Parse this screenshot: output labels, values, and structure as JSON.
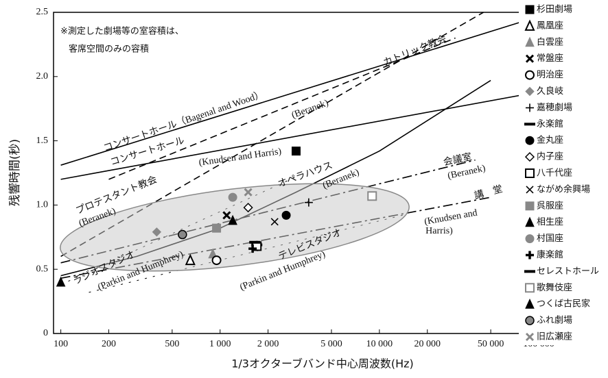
{
  "chart_data": {
    "type": "scatter",
    "xlabel": "1/3オクターブバンド中心周波数(Hz)",
    "ylabel": "残響時間(秒)",
    "xlog": true,
    "xlim": [
      90,
      100000
    ],
    "ylim": [
      0,
      2.5
    ],
    "xticks": [
      100,
      200,
      500,
      {
        "value": 1000,
        "label": "1 000"
      },
      {
        "value": 2000,
        "label": "2 000"
      },
      {
        "value": 5000,
        "label": "5 000"
      },
      {
        "value": 10000,
        "label": "10 000"
      },
      {
        "value": 20000,
        "label": "20 000"
      },
      {
        "value": 50000,
        "label": "50 000"
      },
      {
        "value": 100000,
        "label": "100 000"
      }
    ],
    "yticks": [
      0,
      0.5,
      {
        "value": 1,
        "label": "1.0"
      },
      1.5,
      {
        "value": 2,
        "label": "2.0"
      },
      2.5
    ],
    "note": [
      "※測定した劇場等の室容積は、",
      "客席空間のみの容積"
    ],
    "lines": [
      {
        "style": "solid",
        "x": [
          100,
          80000
        ],
        "values": [
          1.31,
          2.43
        ]
      },
      {
        "style": "solid",
        "x": [
          100,
          100000
        ],
        "values": [
          1.2,
          1.88
        ]
      },
      {
        "style": "dashed",
        "x": [
          200,
          30000
        ],
        "values": [
          1.2,
          2.3
        ]
      },
      {
        "style": "dashed",
        "x": [
          100,
          45000
        ],
        "values": [
          0.6,
          2.5
        ]
      },
      {
        "style": "solid",
        "x": [
          100,
          300,
          1000,
          3000,
          10000,
          50000
        ],
        "values": [
          0.45,
          0.6,
          0.82,
          1.1,
          1.42,
          1.97
        ]
      },
      {
        "style": "dashdot",
        "x": [
          100,
          40000
        ],
        "values": [
          0.55,
          1.35
        ]
      },
      {
        "style": "dashdot",
        "x": [
          100,
          50000
        ],
        "values": [
          0.43,
          1.06
        ]
      },
      {
        "style": "cross",
        "x": [
          100,
          3000
        ],
        "values": [
          0.38,
          1.22
        ]
      },
      {
        "style": "cross",
        "x": [
          150,
          15000
        ],
        "values": [
          0.32,
          0.93
        ]
      }
    ],
    "annotations": [
      "コンサートホール（Bagenal and Wood）",
      "コンサートホール",
      "(Beranek)",
      "カトリック教会",
      "プロテスタント教会",
      "(Beranek)",
      "(Knudsen and Harris)",
      "オペラハウス",
      "(Beranek)",
      "会議室",
      "(Beranek)",
      "講　堂",
      "(Knudsen and",
      "Harris)",
      "ラジオスタジオ",
      "(Parkin and Humphrey)",
      "テレビスタジオ",
      "(Parkin and Humphrey)"
    ],
    "series": [
      {
        "name": "杉田劇場",
        "color": "#000000",
        "marker": "square",
        "x": [
          3000
        ],
        "values": [
          1.42
        ]
      },
      {
        "name": "鳳凰座",
        "color": "#000000",
        "marker": "triangle-open",
        "x": [
          650
        ],
        "values": [
          0.57
        ]
      },
      {
        "name": "白雲座",
        "color": "#888888",
        "marker": "triangle",
        "x": [
          900
        ],
        "values": [
          0.62
        ]
      },
      {
        "name": "常盤座",
        "color": "#000000",
        "marker": "cross-bold",
        "x": [
          1100
        ],
        "values": [
          0.92
        ]
      },
      {
        "name": "明治座",
        "color": "#000000",
        "marker": "circle-open",
        "x": [
          950
        ],
        "values": [
          0.57
        ]
      },
      {
        "name": "久良岐",
        "color": "#888888",
        "marker": "diamond",
        "x": [
          400
        ],
        "values": [
          0.79
        ]
      },
      {
        "name": "嘉穂劇場",
        "color": "#000000",
        "marker": "plus",
        "x": [
          3600
        ],
        "values": [
          1.02
        ]
      },
      {
        "name": "永楽館",
        "color": "#000000",
        "marker": "bar",
        "x": [
          1700
        ],
        "values": [
          0.69
        ]
      },
      {
        "name": "金丸座",
        "color": "#000000",
        "marker": "circle",
        "x": [
          2600
        ],
        "values": [
          0.92
        ]
      },
      {
        "name": "内子座",
        "color": "#000000",
        "marker": "diamond-open",
        "x": [
          1500
        ],
        "values": [
          0.98
        ]
      },
      {
        "name": "八千代座",
        "color": "#000000",
        "marker": "square-open",
        "x": [
          1700
        ],
        "values": [
          0.68
        ]
      },
      {
        "name": "ながめ余興場",
        "color": "#000000",
        "marker": "cross",
        "x": [
          2200
        ],
        "values": [
          0.87
        ]
      },
      {
        "name": "呉服座",
        "color": "#888888",
        "marker": "square",
        "x": [
          950
        ],
        "values": [
          0.82
        ]
      },
      {
        "name": "相生座",
        "color": "#000000",
        "marker": "triangle",
        "x": [
          1200
        ],
        "values": [
          0.88
        ]
      },
      {
        "name": "村国座",
        "color": "#888888",
        "marker": "circle",
        "x": [
          1200
        ],
        "values": [
          1.06
        ]
      },
      {
        "name": "康楽館",
        "color": "#000000",
        "marker": "plus-bold",
        "x": [
          1600
        ],
        "values": [
          0.66
        ]
      },
      {
        "name": "セレストホール",
        "color": "#000000",
        "marker": "bar",
        "x": [
          1650
        ],
        "values": [
          0.71
        ]
      },
      {
        "name": "歌舞伎座",
        "color": "#888888",
        "marker": "square-open",
        "x": [
          9000
        ],
        "values": [
          1.07
        ]
      },
      {
        "name": "つくば古民家",
        "color": "#000000",
        "marker": "triangle",
        "x": [
          100
        ],
        "values": [
          0.4
        ]
      },
      {
        "name": "ふれ劇場",
        "color": "#888888",
        "marker": "circle-ring",
        "x": [
          580
        ],
        "values": [
          0.77
        ]
      },
      {
        "name": "旧広瀬座",
        "color": "#888888",
        "marker": "cross-bold",
        "x": [
          1500
        ],
        "values": [
          1.1
        ]
      }
    ]
  }
}
